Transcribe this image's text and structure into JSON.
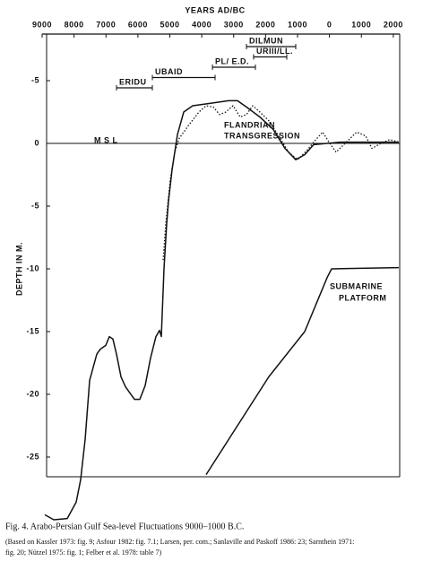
{
  "chart_data": {
    "type": "line",
    "title": "YEARS AD/BC",
    "ylabel": "DEPTH IN M.",
    "xlim": [
      -9000,
      2200
    ],
    "xticks": [
      {
        "value": -9000,
        "label": "9000"
      },
      {
        "value": -8000,
        "label": "8000"
      },
      {
        "value": -7000,
        "label": "7000"
      },
      {
        "value": -6000,
        "label": "6000"
      },
      {
        "value": -5000,
        "label": "5000"
      },
      {
        "value": -4000,
        "label": "4000"
      },
      {
        "value": -3000,
        "label": "3000"
      },
      {
        "value": -2000,
        "label": "2000"
      },
      {
        "value": -1000,
        "label": "1000"
      },
      0,
      1000,
      2000
    ],
    "ylim": [
      -30,
      9
    ],
    "yticks": [
      {
        "value": 5,
        "label": "-5"
      },
      0,
      -5,
      -10,
      -15,
      -20,
      -25
    ],
    "msl": 0,
    "color": "#111111",
    "series": [
      {
        "style": "solid",
        "x": [
          -8916,
          -8635,
          -8214,
          -7933,
          -7793,
          -7653,
          -7512,
          -7288,
          -7176,
          -7007,
          -6895,
          -6782,
          -6670,
          -6530,
          -6390,
          -6109,
          -5940,
          -5772,
          -5604,
          -5435,
          -5323,
          -5267,
          -5183,
          -5098,
          -5042,
          -4930,
          -4761,
          -4565,
          -4284,
          -3723,
          -3161,
          -2880,
          -2600,
          -2179,
          -1758,
          -1393,
          -1056,
          -776,
          -495,
          347,
          2172
        ],
        "values": [
          -29.6,
          -30,
          -29.9,
          -28.6,
          -26.8,
          -23.6,
          -18.9,
          -16.8,
          -16.4,
          -16.1,
          -15.4,
          -15.6,
          -16.8,
          -18.6,
          -19.4,
          -20.4,
          -20.4,
          -19.3,
          -17.1,
          -15.4,
          -14.9,
          -15.4,
          -10,
          -6.4,
          -4.6,
          -2.1,
          0.7,
          2.5,
          3,
          3.2,
          3.4,
          3.4,
          2.9,
          2.1,
          1.1,
          -0.4,
          -1.3,
          -0.9,
          -0.1,
          0.1,
          0.1
        ]
      },
      {
        "style": "dotted",
        "x": [
          -5211,
          -5126,
          -4986,
          -4846,
          -4705,
          -4424,
          -4088,
          -3863,
          -3639,
          -3442,
          -3245,
          -3021,
          -2796,
          -2600,
          -2403,
          -2179,
          -1899,
          -1618,
          -1281,
          -1000,
          -720,
          -495,
          -214,
          10,
          207,
          488,
          852,
          1133,
          1330,
          1611,
          1891,
          2172
        ],
        "values": [
          -9.3,
          -6.4,
          -2.9,
          -0.7,
          0.4,
          1.4,
          2.5,
          3,
          2.9,
          2.3,
          2.5,
          3,
          2.1,
          2.3,
          3,
          2.5,
          1.8,
          0.7,
          -0.7,
          -1.3,
          -0.6,
          0.1,
          0.9,
          0,
          -0.7,
          0,
          0.9,
          0.6,
          -0.4,
          0,
          0.3,
          0.1
        ]
      },
      {
        "style": "solid",
        "x": [
          -3863,
          -1899,
          -776,
          -74,
          66,
          2172
        ],
        "values": [
          -26.4,
          -18.6,
          -15,
          -10.7,
          -10,
          -9.9
        ]
      }
    ],
    "periods": [
      {
        "name": "ERIDU",
        "start": -6670,
        "end": -5547
      },
      {
        "name": "UBAID",
        "start": -5547,
        "end": -3582
      },
      {
        "name": "PL/ E.D.",
        "start": -3666,
        "end": -2320
      },
      {
        "name": "URIII/LL.",
        "start": -2376,
        "end": -1337
      },
      {
        "name": "DILMUN",
        "start": -2600,
        "end": -1056
      }
    ],
    "annotations": [
      "M S L",
      "FLANDRIAN",
      "TRANSGRESSION",
      "SUBMARINE",
      "PLATFORM"
    ]
  },
  "caption": [
    "Fig. 4.  Arabo-Persian Gulf Sea-level Fluctuations 9000–1000 B.C.",
    "(Based on Kassler 1973: fig. 9; Asfour 1982: fig. 7.1; Larsen, per. com.; Sanlaville and Paskoff 1986: 23; Sarnthein 1971:",
    "fig. 20; Nützel 1975: fig. 1; Felber et al. 1978: table 7)"
  ]
}
